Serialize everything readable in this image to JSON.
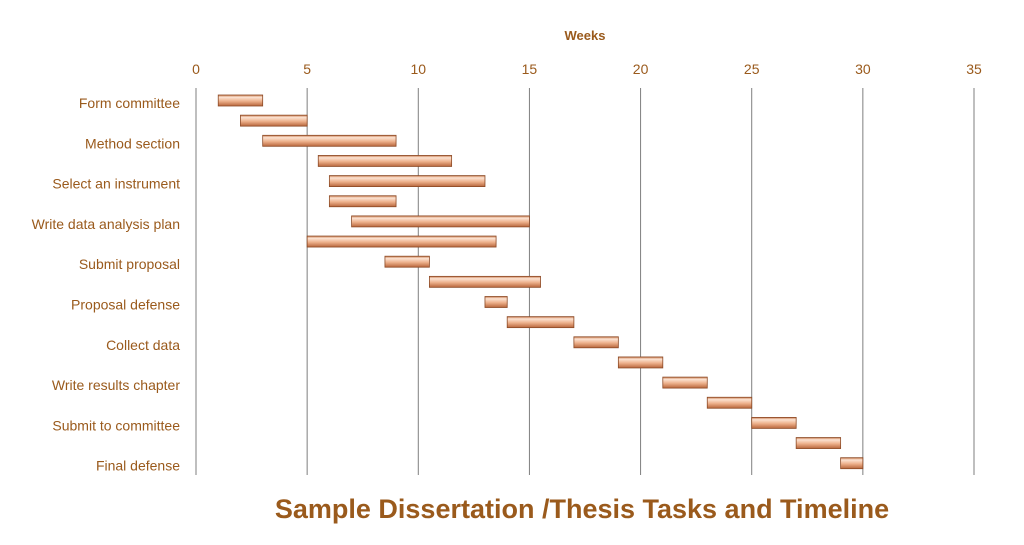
{
  "chart_data": {
    "type": "bar",
    "orientation": "horizontal",
    "subtype": "gantt",
    "title": "Sample Dissertation /Thesis Tasks and Timeline",
    "xlabel": "Weeks",
    "ylabel": "",
    "xlim": [
      0,
      35
    ],
    "x_ticks": [
      0,
      5,
      10,
      15,
      20,
      25,
      30,
      35
    ],
    "x_axis_position": "top",
    "grid": "vertical",
    "legend": "none",
    "category_labels": [
      "Form committee",
      "Method section",
      "Select an instrument",
      "Write data analysis plan",
      "Submit proposal",
      "Proposal defense",
      "Collect data",
      "Write results chapter",
      "Submit to committee",
      "Final defense"
    ],
    "tasks": [
      {
        "start": 1,
        "end": 3
      },
      {
        "start": 2,
        "end": 5
      },
      {
        "start": 3,
        "end": 9
      },
      {
        "start": 5.5,
        "end": 11.5
      },
      {
        "start": 6,
        "end": 13
      },
      {
        "start": 6,
        "end": 9
      },
      {
        "start": 7,
        "end": 15
      },
      {
        "start": 5,
        "end": 13.5
      },
      {
        "start": 8.5,
        "end": 10.5
      },
      {
        "start": 10.5,
        "end": 15.5
      },
      {
        "start": 13,
        "end": 14
      },
      {
        "start": 14,
        "end": 17
      },
      {
        "start": 17,
        "end": 19
      },
      {
        "start": 19,
        "end": 21
      },
      {
        "start": 21,
        "end": 23
      },
      {
        "start": 23,
        "end": 25
      },
      {
        "start": 25,
        "end": 27
      },
      {
        "start": 27,
        "end": 29
      },
      {
        "start": 29,
        "end": 30
      }
    ],
    "colors": {
      "bar_light": "#fbe3d3",
      "bar_mid": "#e9a57c",
      "bar_dark": "#b8663c",
      "text": "#9a5a1c",
      "grid": "#7f7f7f"
    }
  }
}
